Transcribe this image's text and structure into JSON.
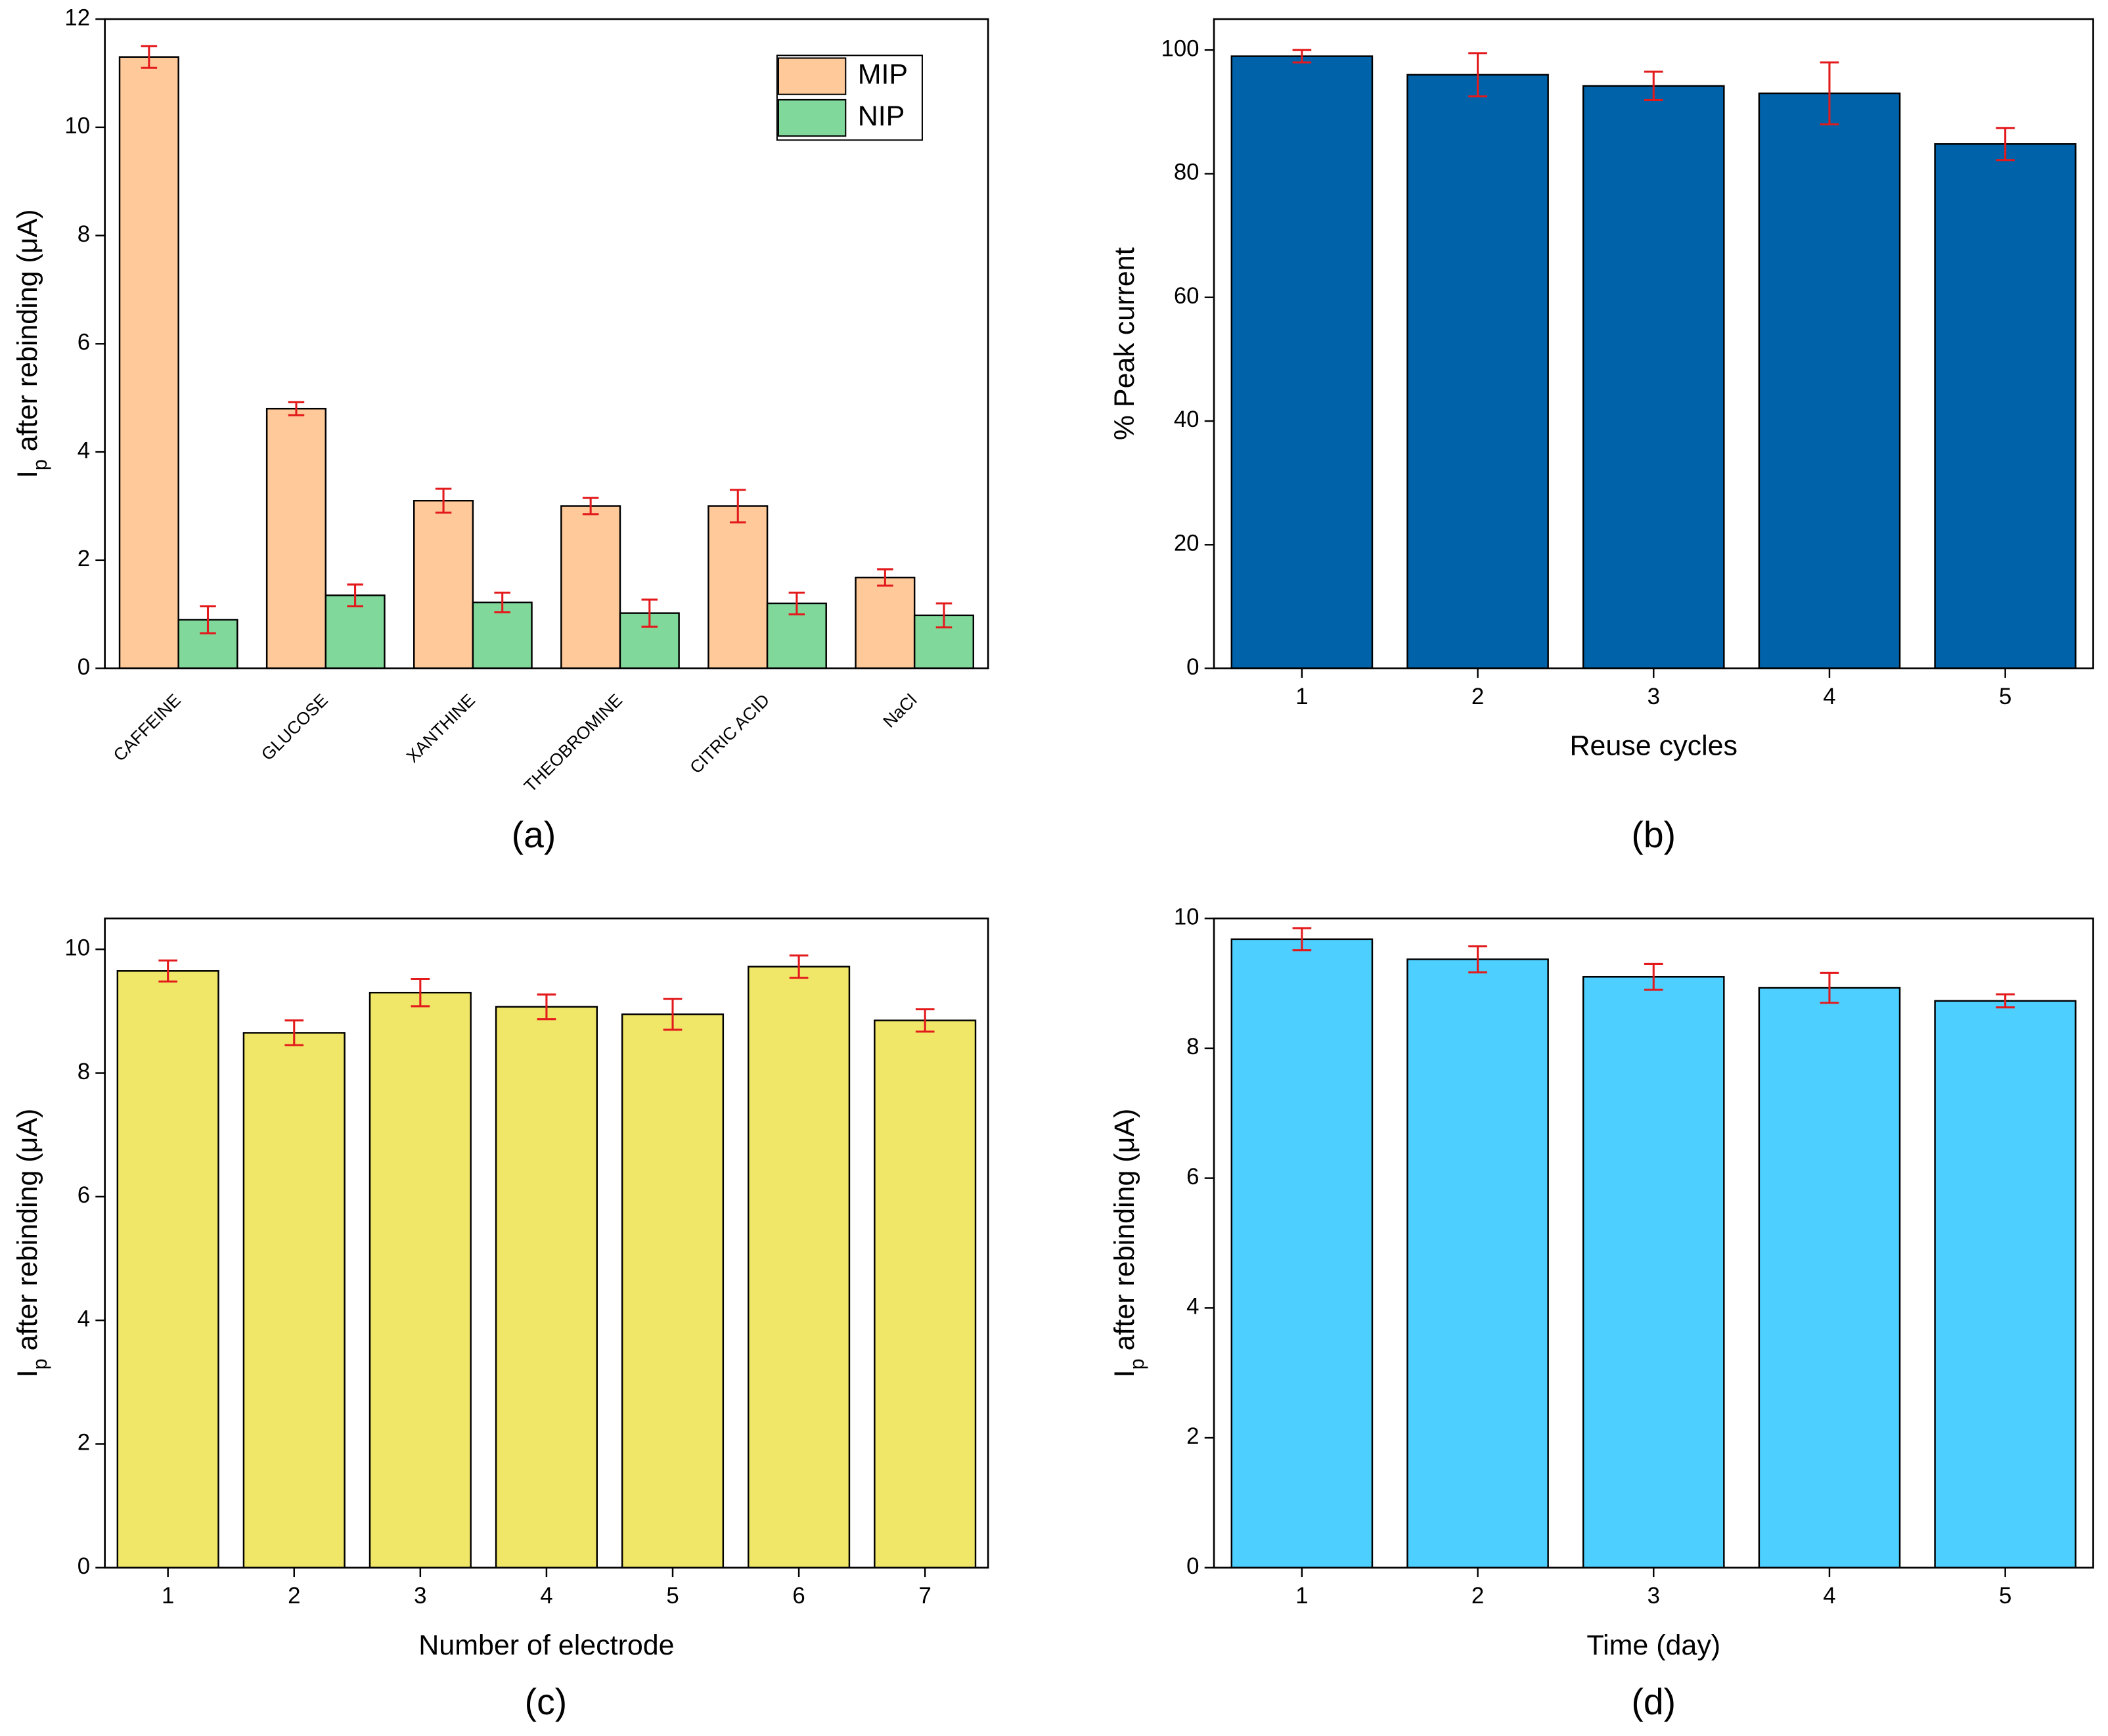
{
  "chart_data": [
    {
      "type": "bar",
      "caption": "(a)",
      "ylabel": [
        "I",
        "p",
        " after rebinding (μA)"
      ],
      "categories": [
        "CAFFEINE",
        "GLUCOSE",
        "XANTHINE",
        "THEOBROMINE",
        "CITRIC ACID",
        "NaCl"
      ],
      "series": [
        {
          "name": "MIP",
          "color": "#ffc999",
          "values": [
            11.3,
            4.8,
            3.1,
            3.0,
            3.0,
            1.68
          ],
          "errors": [
            0.2,
            0.12,
            0.22,
            0.15,
            0.3,
            0.15
          ]
        },
        {
          "name": "NIP",
          "color": "#80d99b",
          "values": [
            0.9,
            1.35,
            1.22,
            1.02,
            1.2,
            0.98
          ],
          "errors": [
            0.25,
            0.2,
            0.18,
            0.25,
            0.2,
            0.22
          ]
        }
      ],
      "error_color": "#e31a1c",
      "legend": "upper right",
      "ylim": [
        0,
        12
      ],
      "yticks": [
        0,
        2,
        4,
        6,
        8,
        10,
        12
      ]
    },
    {
      "type": "bar",
      "caption": "(b)",
      "xlabel": "Reuse cycles",
      "ylabel": [
        "% Peak current"
      ],
      "x": [
        1,
        2,
        3,
        4,
        5
      ],
      "values": [
        99,
        96,
        94.2,
        93,
        84.8
      ],
      "errors": [
        1,
        3.5,
        2.3,
        5,
        2.6
      ],
      "color": "#0063a9",
      "error_color": "#e31a1c",
      "xlim": [
        0.5,
        5.5
      ],
      "xticks": [
        1,
        2,
        3,
        4,
        5
      ],
      "ylim": [
        0,
        105
      ],
      "yticks": [
        0,
        20,
        40,
        60,
        80,
        100
      ]
    },
    {
      "type": "bar",
      "caption": "(c)",
      "xlabel": "Number of electrode",
      "ylabel": [
        "I",
        "p",
        " after rebinding (μA)"
      ],
      "x": [
        1,
        2,
        3,
        4,
        5,
        6,
        7
      ],
      "values": [
        9.65,
        8.65,
        9.3,
        9.07,
        8.95,
        9.72,
        8.85
      ],
      "errors": [
        0.17,
        0.2,
        0.22,
        0.2,
        0.25,
        0.18,
        0.18
      ],
      "color": "#f0e668",
      "error_color": "#e31a1c",
      "xlim": [
        0.5,
        7.5
      ],
      "xticks": [
        1,
        2,
        3,
        4,
        5,
        6,
        7
      ],
      "ylim": [
        0,
        10.5
      ],
      "yticks": [
        0,
        2,
        4,
        6,
        8,
        10
      ]
    },
    {
      "type": "bar",
      "caption": "(d)",
      "xlabel": "Time (day)",
      "ylabel": [
        "I",
        "p",
        " after rebinding (μA)"
      ],
      "x": [
        1,
        2,
        3,
        4,
        5
      ],
      "values": [
        9.68,
        9.37,
        9.1,
        8.93,
        8.73
      ],
      "errors": [
        0.17,
        0.2,
        0.2,
        0.23,
        0.1
      ],
      "color": "#4dcfff",
      "error_color": "#e31a1c",
      "xlim": [
        0.5,
        5.5
      ],
      "xticks": [
        1,
        2,
        3,
        4,
        5
      ],
      "ylim": [
        0,
        10
      ],
      "yticks": [
        0,
        2,
        4,
        6,
        8,
        10
      ]
    }
  ]
}
